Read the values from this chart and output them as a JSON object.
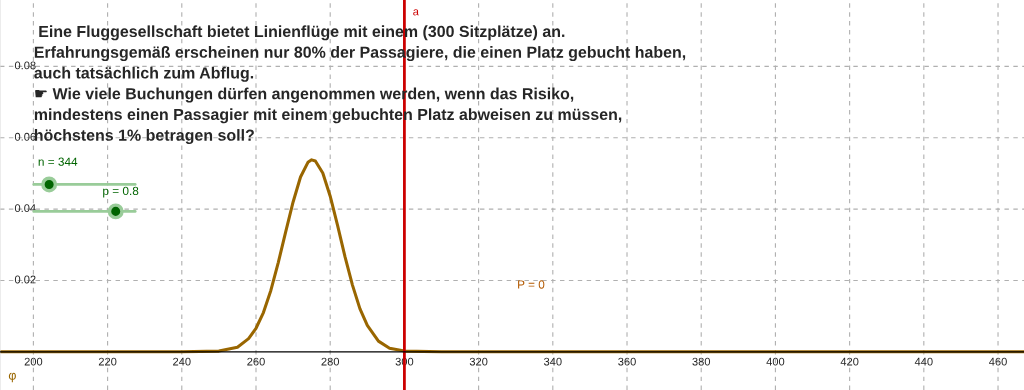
{
  "chart_data": {
    "type": "line",
    "title": " Eine Fluggesellschaft bietet Linienflüge mit einem (300 Sitzplätze) an.\nErfahrungsgemäß erscheinen nur 80% der Passagiere, die einen Platz gebucht haben,\nauch tatsächlich zum Abflug.\n☛ Wie viele Buchungen dürfen angenommen werden, wenn das Risiko,\nmindestens einen Passagier mit einem gebuchten Platz abweisen zu müssen,\nhöchstens 1% betragen soll?",
    "series": [
      {
        "name": "φ",
        "color": "#996600",
        "x": [
          191,
          240,
          250,
          255,
          258,
          260,
          262,
          264,
          266,
          268,
          270,
          272,
          274,
          275,
          276,
          278,
          280,
          282,
          284,
          286,
          288,
          290,
          293,
          296,
          300,
          310,
          467
        ],
        "values": [
          0,
          0,
          0.0002,
          0.0013,
          0.0037,
          0.0066,
          0.011,
          0.0172,
          0.025,
          0.0336,
          0.042,
          0.049,
          0.0531,
          0.0538,
          0.0535,
          0.0501,
          0.0436,
          0.0354,
          0.0266,
          0.0187,
          0.0121,
          0.0074,
          0.003,
          0.001,
          0.0002,
          0,
          0
        ]
      }
    ],
    "ref_lines": [
      {
        "axis": "x",
        "value": 300,
        "label": "a",
        "color": "#cc0000"
      }
    ],
    "annotations": [
      "n = 344",
      "p = 0.8",
      "P = 0"
    ],
    "xlim": [
      191,
      467
    ],
    "ylim": [
      -0.0107,
      0.0986
    ],
    "xticks": [
      200,
      220,
      240,
      260,
      280,
      300,
      320,
      340,
      360,
      380,
      400,
      420,
      440,
      460
    ],
    "yticks": [
      0.02,
      0.04,
      0.06,
      0.08
    ],
    "grid": true,
    "legend": false,
    "marker": "none",
    "line_style": "solid"
  }
}
